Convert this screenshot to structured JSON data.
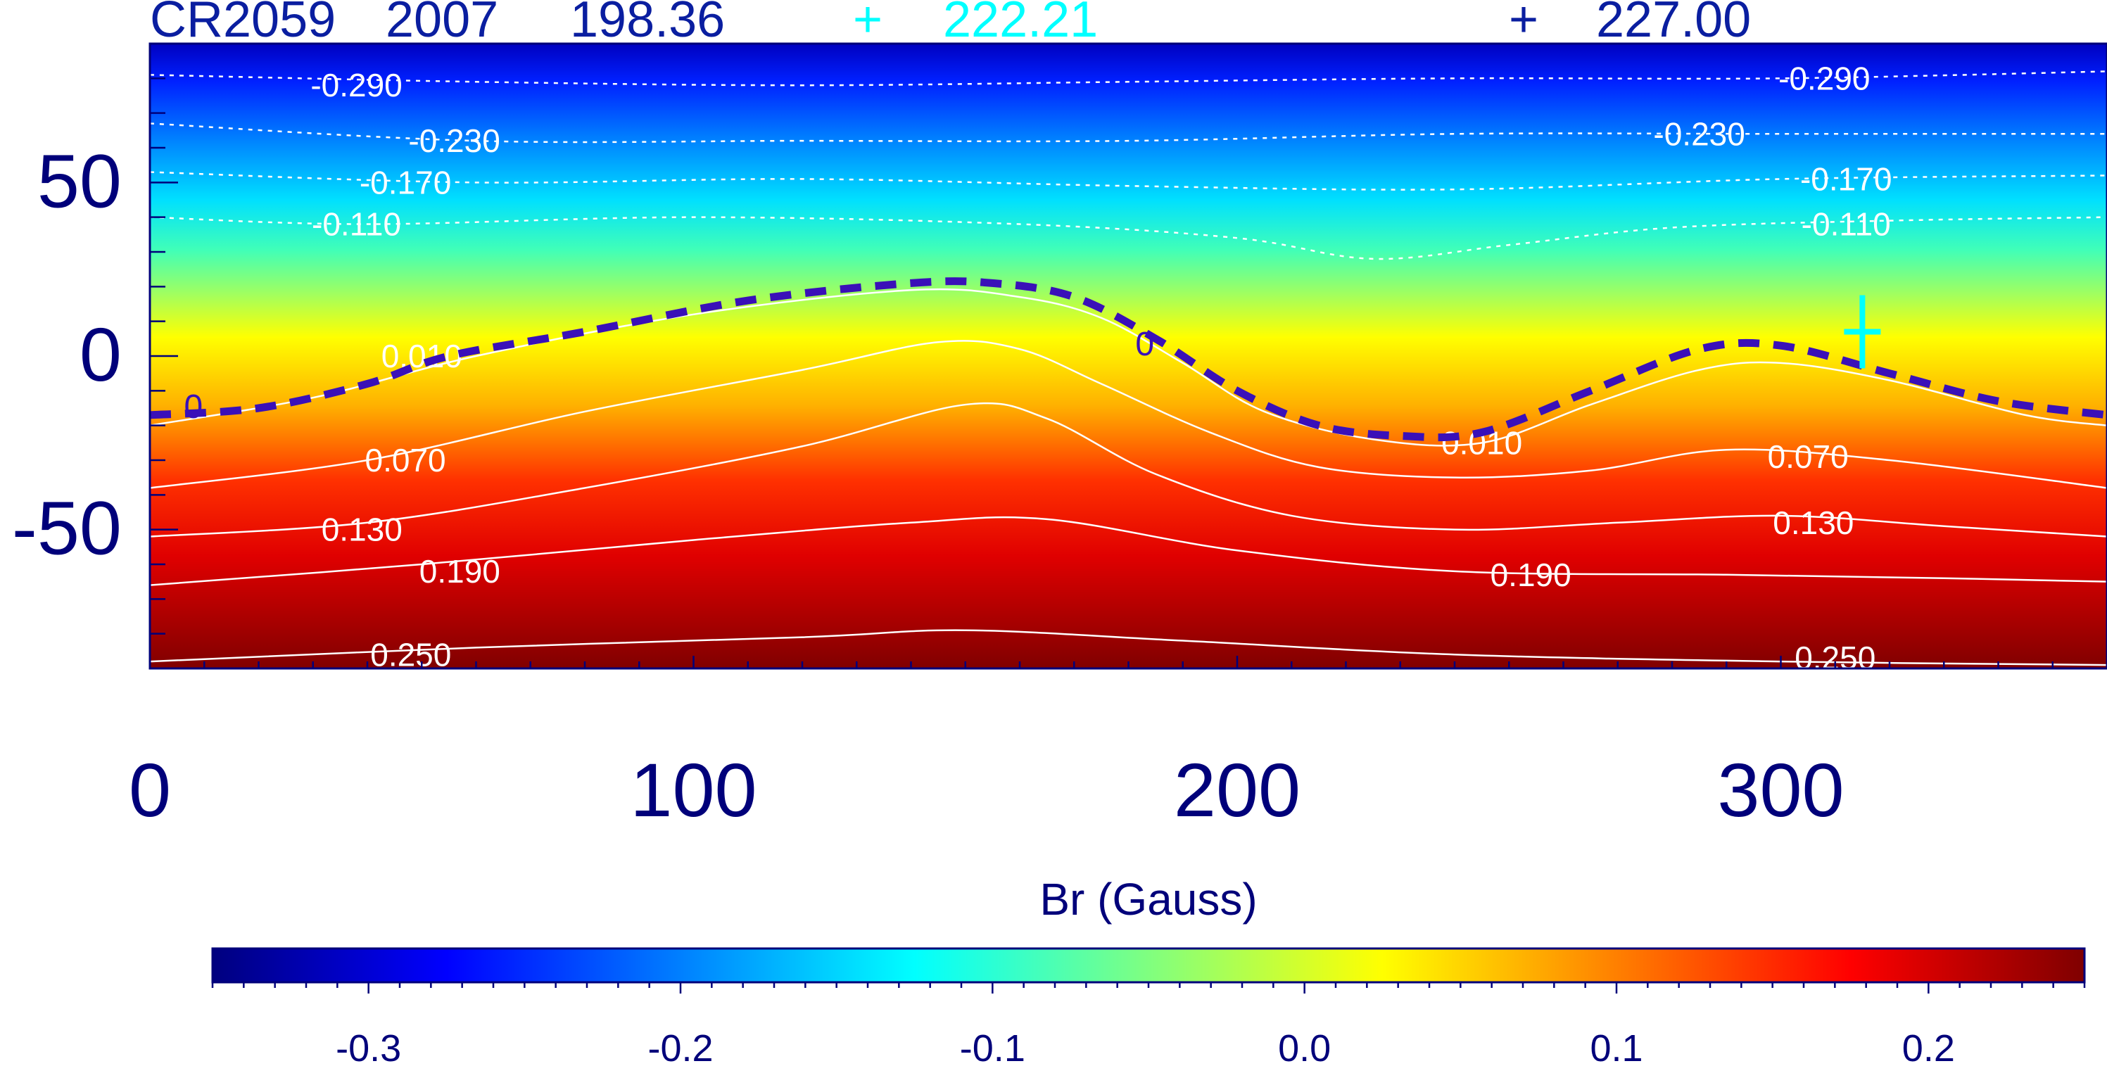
{
  "header": {
    "rotation": "CR2059",
    "year": "2007",
    "value1": "198.36",
    "marker1_symbol": "+",
    "value2": "222.21",
    "marker2_symbol": "+",
    "value3": "227.00"
  },
  "colors": {
    "axis": "#00007a",
    "header_dark": "#0a1ea0",
    "header_cyan": "#00ffff",
    "contour": "#ffffff",
    "neutral_line": "#3a10b8"
  },
  "chart_data": {
    "type": "heatmap",
    "title": "",
    "xlabel": "",
    "ylabel": "",
    "xlim": [
      0,
      360
    ],
    "ylim": [
      -90,
      90
    ],
    "x_ticks": [
      0,
      100,
      200,
      300
    ],
    "y_ticks": [
      50,
      0,
      -50
    ],
    "grid": false,
    "colorbar": {
      "label": "Br (Gauss)",
      "range": [
        -0.35,
        0.25
      ],
      "ticks": [
        "-0.3",
        "-0.2",
        "-0.1",
        "0.0",
        "0.1",
        "0.2"
      ],
      "tick_values": [
        -0.3,
        -0.2,
        -0.1,
        0.0,
        0.1,
        0.2
      ],
      "colormap": "jet"
    },
    "neutral_line": {
      "level": 0,
      "label": "0",
      "points": [
        [
          0,
          -17
        ],
        [
          20,
          -15
        ],
        [
          40,
          -8
        ],
        [
          55,
          0
        ],
        [
          80,
          7
        ],
        [
          110,
          16
        ],
        [
          140,
          21
        ],
        [
          155,
          21
        ],
        [
          170,
          17
        ],
        [
          185,
          5
        ],
        [
          200,
          -10
        ],
        [
          215,
          -20
        ],
        [
          230,
          -23
        ],
        [
          245,
          -22
        ],
        [
          265,
          -10
        ],
        [
          285,
          2
        ],
        [
          300,
          3
        ],
        [
          320,
          -5
        ],
        [
          340,
          -13
        ],
        [
          360,
          -17
        ]
      ]
    },
    "contours": [
      {
        "level": -0.29,
        "labels": [
          {
            "text": "-0.290",
            "x": 38,
            "y": 78
          },
          {
            "text": "-0.290",
            "x": 308,
            "y": 80
          }
        ]
      },
      {
        "level": -0.23,
        "labels": [
          {
            "text": "-0.230",
            "x": 56,
            "y": 62
          },
          {
            "text": "-0.230",
            "x": 285,
            "y": 64
          }
        ]
      },
      {
        "level": -0.17,
        "labels": [
          {
            "text": "-0.170",
            "x": 47,
            "y": 50
          },
          {
            "text": "-0.170",
            "x": 312,
            "y": 51
          }
        ]
      },
      {
        "level": -0.11,
        "labels": [
          {
            "text": "-0.110",
            "x": 38,
            "y": 38
          },
          {
            "text": "-0.110",
            "x": 312,
            "y": 38
          }
        ]
      },
      {
        "level": 0.01,
        "labels": [
          {
            "text": "0.010",
            "x": 50,
            "y": 0
          },
          {
            "text": "0.010",
            "x": 245,
            "y": -25
          }
        ]
      },
      {
        "level": 0.07,
        "labels": [
          {
            "text": "0.070",
            "x": 47,
            "y": -30
          },
          {
            "text": "0.070",
            "x": 305,
            "y": -29
          }
        ]
      },
      {
        "level": 0.13,
        "labels": [
          {
            "text": "0.130",
            "x": 39,
            "y": -50
          },
          {
            "text": "0.130",
            "x": 306,
            "y": -48
          }
        ]
      },
      {
        "level": 0.19,
        "labels": [
          {
            "text": "0.190",
            "x": 57,
            "y": -62
          },
          {
            "text": "0.190",
            "x": 254,
            "y": -63
          }
        ]
      },
      {
        "level": 0.25,
        "labels": [
          {
            "text": "0.250",
            "x": 48,
            "y": -86
          },
          {
            "text": "0.250",
            "x": 310,
            "y": -87
          }
        ]
      }
    ],
    "marker": {
      "x": 315,
      "y": 7,
      "color": "#00ffff"
    }
  }
}
